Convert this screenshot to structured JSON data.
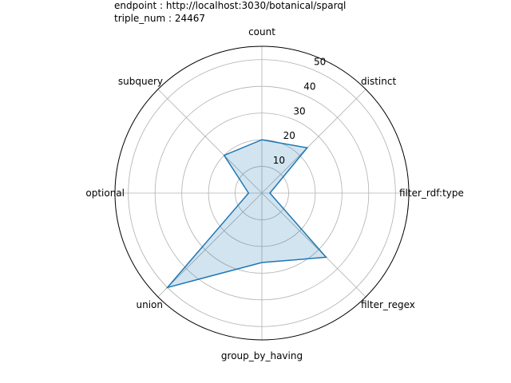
{
  "header": {
    "endpoint": "endpoint : http://localhost:3030/botanical/sparql",
    "triple_num": "triple_num : 24467"
  },
  "chart_data": {
    "type": "radar",
    "title": "",
    "categories": [
      "count",
      "distinct",
      "filter_rdf:type",
      "filter_regex",
      "group_by_having",
      "union",
      "optional",
      "subquery"
    ],
    "series": [
      {
        "values": [
          20,
          24,
          3,
          34,
          26,
          50,
          5,
          20
        ]
      }
    ],
    "rlim": [
      0,
      55
    ],
    "radial_ticks": [
      10,
      20,
      30,
      40,
      50
    ],
    "grid": true,
    "colors": {
      "line": "#1f77b4",
      "fill": "#1f77b4",
      "grid": "#b0b0b0",
      "spine": "#000000"
    }
  }
}
